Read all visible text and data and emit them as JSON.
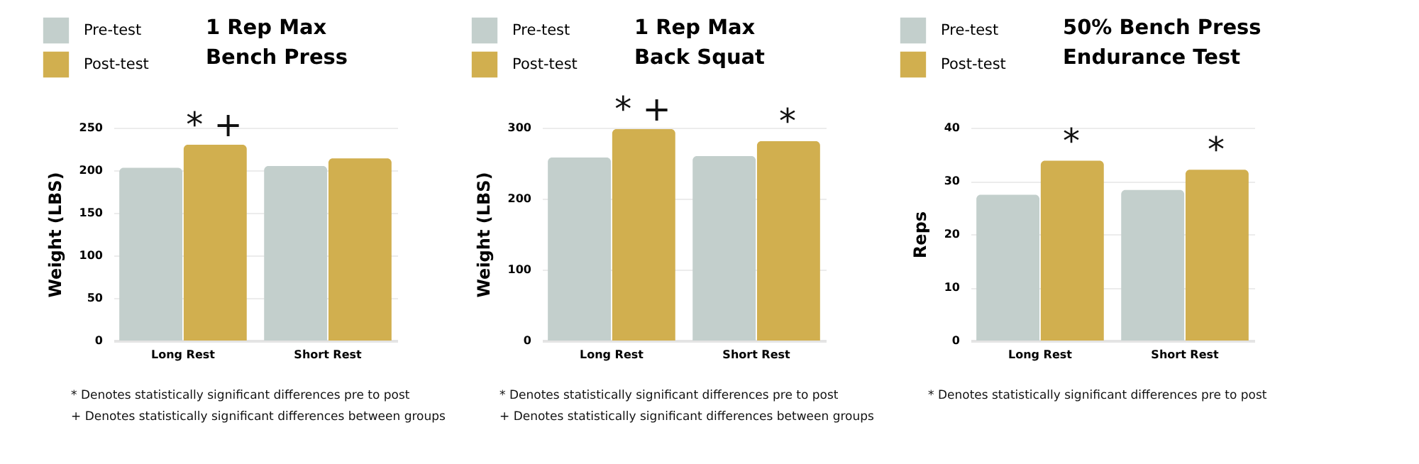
{
  "chart_data": [
    {
      "type": "bar",
      "title": "1 Rep Max",
      "subtitle": "Bench Press",
      "ylabel": "Weight (LBS)",
      "categories": [
        "Long Rest",
        "Short Rest"
      ],
      "series": [
        {
          "name": "Pre-test",
          "color": "#c3cfcc",
          "values": [
            203,
            205
          ]
        },
        {
          "name": "Post-test",
          "color": "#d1af4f",
          "values": [
            230,
            214
          ]
        }
      ],
      "ylim": [
        0,
        250
      ],
      "yticks": [
        0,
        50,
        100,
        150,
        200,
        250
      ],
      "grid": "y",
      "legend": "top left",
      "annotations": [
        {
          "text": "* +",
          "x": "Long Rest",
          "y": 230
        },
        "* Denotes statistically significant differences pre to post",
        "+ Denotes statistically significant differences between groups"
      ]
    },
    {
      "type": "bar",
      "title": "1 Rep Max",
      "subtitle": "Back Squat",
      "ylabel": "Weight (LBS)",
      "categories": [
        "Long Rest",
        "Short Rest"
      ],
      "series": [
        {
          "name": "Pre-test",
          "color": "#c3cfcc",
          "values": [
            258,
            260
          ]
        },
        {
          "name": "Post-test",
          "color": "#d1af4f",
          "values": [
            298,
            281
          ]
        }
      ],
      "ylim": [
        0,
        300
      ],
      "yticks": [
        0,
        100,
        200,
        300
      ],
      "grid": "y",
      "legend": "top left",
      "annotations": [
        {
          "text": "* +",
          "x": "Long Rest",
          "y": 298
        },
        {
          "text": "*",
          "x": "Short Rest",
          "y": 281
        },
        "* Denotes statistically significant differences pre to post",
        "+ Denotes statistically significant differences between groups"
      ]
    },
    {
      "type": "bar",
      "title": "50% Bench Press",
      "subtitle": "Endurance Test",
      "ylabel": "Reps",
      "categories": [
        "Long Rest",
        "Short Rest"
      ],
      "series": [
        {
          "name": "Pre-test",
          "color": "#c3cfcc",
          "values": [
            27.4,
            28.3
          ]
        },
        {
          "name": "Post-test",
          "color": "#d1af4f",
          "values": [
            33.8,
            32.1
          ]
        }
      ],
      "ylim": [
        0,
        40
      ],
      "yticks": [
        0,
        10,
        20,
        30,
        40
      ],
      "grid": "y",
      "legend": "top left",
      "annotations": [
        {
          "text": "*",
          "x": "Long Rest",
          "y": 33.8
        },
        {
          "text": "*",
          "x": "Short Rest",
          "y": 32.1
        },
        "* Denotes statistically significant differences pre to post"
      ]
    }
  ]
}
